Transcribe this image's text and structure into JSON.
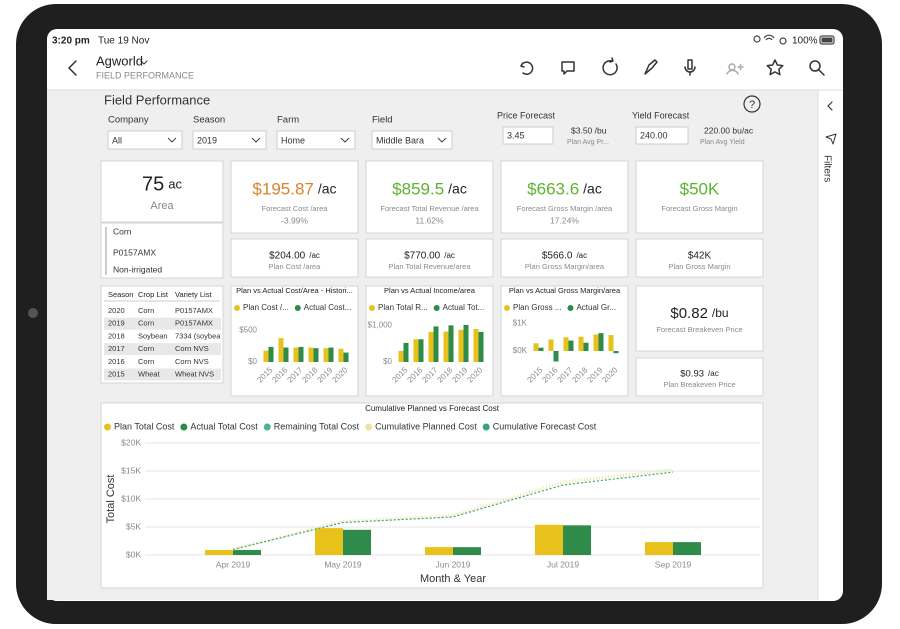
{
  "status_bar": {
    "time": "3:20 pm",
    "date": "Tue 19 Nov",
    "battery": "100%"
  },
  "app_header": {
    "title": "Agworld",
    "subtitle": "FIELD PERFORMANCE"
  },
  "filters_pane": {
    "label": "Filters"
  },
  "report": {
    "title": "Field Performance",
    "help": "?",
    "slicers": [
      {
        "label": "Company",
        "value": "All"
      },
      {
        "label": "Season",
        "value": "2019"
      },
      {
        "label": "Farm",
        "value": "Home"
      },
      {
        "label": "Field",
        "value": "Middle Bara"
      }
    ],
    "price_forecast": {
      "label": "Price Forecast",
      "input": "3.45",
      "value": "$3.50 /bu",
      "caption": "Plan Avg Pr..."
    },
    "yield_forecast": {
      "label": "Yield Forecast",
      "input": "240.00",
      "value": "220.00 bu/ac",
      "caption": "Plan Avg Yield"
    },
    "area_card": {
      "value": "75",
      "unit": "ac",
      "label": "Area"
    },
    "field_info": [
      "Corn",
      "P0157AMX",
      "Non-irrigated"
    ],
    "forecast_cards": [
      {
        "value": "$195.87",
        "unit": "/ac",
        "label": "Forecast Cost /area",
        "change": "-3.99%",
        "color": "#d9822b"
      },
      {
        "value": "$859.5",
        "unit": "/ac",
        "label": "Forecast Total Revenue /area",
        "change": "11.62%",
        "color": "#5db330"
      },
      {
        "value": "$663.6",
        "unit": "/ac",
        "label": "Forecast Gross Margin /area",
        "change": "17.24%",
        "color": "#5db330"
      },
      {
        "value": "$50K",
        "label": "Forecast Gross Margin",
        "color": "#5db330"
      }
    ],
    "plan_cards": [
      {
        "value": "$204.00",
        "unit": "/ac",
        "label": "Plan Cost /area"
      },
      {
        "value": "$770.00",
        "unit": "/ac",
        "label": "Plan Total Revenue/area"
      },
      {
        "value": "$566.0",
        "unit": "/ac",
        "label": "Plan Gross Margin/area"
      },
      {
        "value": "$42K",
        "label": "Plan Gross Margin"
      }
    ],
    "history_table": {
      "columns": [
        "Season",
        "Crop List",
        "Variety List"
      ],
      "rows": [
        [
          "2020",
          "Corn",
          "P0157AMX"
        ],
        [
          "2019",
          "Corn",
          "P0157AMX"
        ],
        [
          "2018",
          "Soybean",
          "7334 (soybea"
        ],
        [
          "2017",
          "Corn",
          "Corn NVS"
        ],
        [
          "2016",
          "Corn",
          "Corn NVS"
        ],
        [
          "2015",
          "Wheat",
          "Wheat NVS"
        ]
      ]
    },
    "breakeven_cards": [
      {
        "value": "$0.82",
        "unit": "/bu",
        "label": "Forecast Breakeven Price"
      },
      {
        "value": "$0.93",
        "unit": "/ac",
        "label": "Plan Breakeven Price"
      }
    ]
  },
  "chart_data": [
    {
      "type": "bar",
      "title": "Plan vs Actual Cost/Area - Histori...",
      "categories": [
        "2015",
        "2016",
        "2017",
        "2018",
        "2019",
        "2020"
      ],
      "series": [
        {
          "name": "Plan Cost /...",
          "color": "#e8c21a",
          "values": [
            180,
            380,
            230,
            230,
            220,
            210
          ]
        },
        {
          "name": "Actual Cost...",
          "color": "#2e8b4a",
          "values": [
            240,
            230,
            240,
            220,
            230,
            150
          ]
        }
      ],
      "ylim": [
        0,
        700
      ],
      "yticks": [
        {
          "value": 0,
          "label": "$0"
        },
        {
          "value": 500,
          "label": "$500"
        }
      ],
      "grid": false
    },
    {
      "type": "bar",
      "title": "Plan vs Actual Income/area",
      "categories": [
        "2015",
        "2016",
        "2017",
        "2018",
        "2019",
        "2020"
      ],
      "series": [
        {
          "name": "Plan Total R...",
          "color": "#e8c21a",
          "values": [
            300,
            620,
            820,
            830,
            880,
            900
          ]
        },
        {
          "name": "Actual Tot...",
          "color": "#2e8b4a",
          "values": [
            520,
            620,
            970,
            1000,
            1010,
            820
          ]
        }
      ],
      "ylim": [
        0,
        1200
      ],
      "yticks": [
        {
          "value": 0,
          "label": "$0"
        },
        {
          "value": 1000,
          "label": "$1,000"
        }
      ],
      "grid": false
    },
    {
      "type": "bar",
      "title": "Plan vs Actual Gross Margin/area",
      "categories": [
        "2015",
        "2016",
        "2017",
        "2018",
        "2019",
        "2020"
      ],
      "series": [
        {
          "name": "Plan Gross ...",
          "color": "#e8c21a",
          "values": [
            280,
            420,
            500,
            520,
            600,
            580
          ]
        },
        {
          "name": "Actual Gr...",
          "color": "#2e8b4a",
          "values": [
            120,
            -380,
            380,
            300,
            650,
            -80
          ]
        }
      ],
      "ylim": [
        -400,
        1200
      ],
      "yticks": [
        {
          "value": 0,
          "label": "$0K"
        },
        {
          "value": 1000,
          "label": "$1K"
        }
      ],
      "grid": false
    },
    {
      "type": "bar",
      "title": "Cumulative Planned vs Forecast Cost",
      "x_label": "Month & Year",
      "y_label": "Total Cost",
      "categories": [
        "Apr 2019",
        "May 2019",
        "Jun 2019",
        "Jul 2019",
        "Sep 2019"
      ],
      "series": [
        {
          "name": "Plan Total Cost",
          "type": "bar",
          "color": "#e8c21a",
          "values": [
            900,
            4800,
            1400,
            5400,
            2300
          ]
        },
        {
          "name": "Actual Total Cost",
          "type": "bar",
          "color": "#2e8b4a",
          "values": [
            900,
            4500,
            1400,
            5300,
            2300
          ]
        },
        {
          "name": "Remaining Total Cost",
          "type": "bar",
          "color": "#49b58f",
          "values": [
            null,
            null,
            null,
            null,
            null
          ]
        },
        {
          "name": "Cumulative Planned Cost",
          "type": "line",
          "color": "#efe39e",
          "values": [
            1000,
            6000,
            7000,
            13000,
            15200
          ]
        },
        {
          "name": "Cumulative Forecast Cost",
          "type": "line",
          "color": "#3aa57a",
          "values": [
            1000,
            5800,
            6800,
            12500,
            14800
          ]
        }
      ],
      "ylim": [
        0,
        20000
      ],
      "yticks": [
        {
          "value": 0,
          "label": "$0K"
        },
        {
          "value": 5000,
          "label": "$5K"
        },
        {
          "value": 10000,
          "label": "$10K"
        },
        {
          "value": 15000,
          "label": "$15K"
        },
        {
          "value": 20000,
          "label": "$20K"
        }
      ],
      "grid": true
    }
  ]
}
